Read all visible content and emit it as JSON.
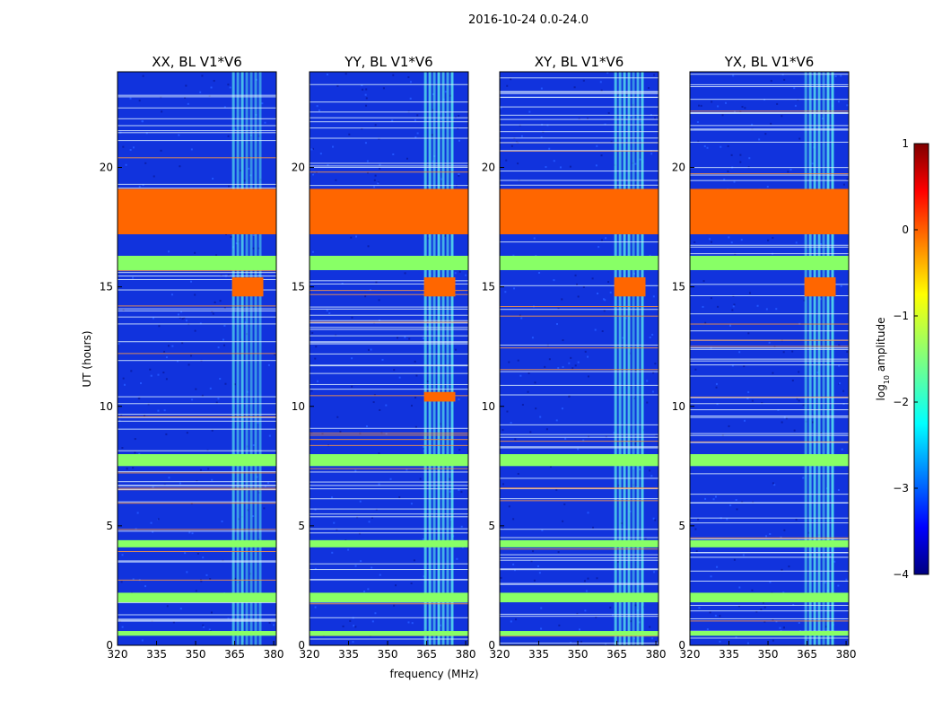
{
  "chart_data": {
    "type": "heatmap",
    "suptitle": "2016-10-24 0.0-24.0",
    "xlabel": "frequency (MHz)",
    "ylabel": "UT (hours)",
    "xlim": [
      320,
      381
    ],
    "ylim": [
      0,
      24
    ],
    "xticks": [
      "320",
      "335",
      "350",
      "365",
      "380"
    ],
    "xtick_values": [
      320,
      335,
      350,
      365,
      380
    ],
    "yticks": [
      "0",
      "5",
      "10",
      "15",
      "20"
    ],
    "ytick_values": [
      0,
      5,
      10,
      15,
      20
    ],
    "colorbar": {
      "label_prefix": "log",
      "label_sub": "10",
      "label_suffix": " amplitude",
      "range": [
        -4,
        1
      ],
      "ticks": [
        "−4",
        "−3",
        "−2",
        "−1",
        "0",
        "1"
      ],
      "tick_values": [
        -4,
        -3,
        -2,
        -1,
        0,
        1
      ]
    },
    "panels": [
      {
        "title": "XX, BL V1*V6",
        "band": [
          364,
          376
        ],
        "saturated_rows_hours": [
          [
            17.2,
            19.1
          ],
          [
            14.6,
            15.4
          ]
        ],
        "flagged_rows_hours": [
          [
            15.7,
            16.3
          ],
          [
            7.5,
            8.0
          ],
          [
            4.1,
            4.4
          ],
          [
            1.8,
            2.2
          ],
          [
            0.4,
            0.6
          ]
        ]
      },
      {
        "title": "YY, BL V1*V6",
        "band": [
          364,
          376
        ],
        "saturated_rows_hours": [
          [
            17.2,
            19.1
          ],
          [
            14.6,
            15.4
          ],
          [
            10.2,
            10.6
          ]
        ],
        "flagged_rows_hours": [
          [
            15.7,
            16.3
          ],
          [
            7.5,
            8.0
          ],
          [
            4.1,
            4.4
          ],
          [
            1.8,
            2.2
          ],
          [
            0.4,
            0.6
          ]
        ]
      },
      {
        "title": "XY, BL V1*V6",
        "band": [
          364,
          376
        ],
        "saturated_rows_hours": [
          [
            17.2,
            19.1
          ],
          [
            14.6,
            15.4
          ]
        ],
        "flagged_rows_hours": [
          [
            15.7,
            16.3
          ],
          [
            7.5,
            8.0
          ],
          [
            4.1,
            4.4
          ],
          [
            1.8,
            2.2
          ],
          [
            0.4,
            0.6
          ]
        ]
      },
      {
        "title": "YX, BL V1*V6",
        "band": [
          364,
          376
        ],
        "saturated_rows_hours": [
          [
            17.2,
            19.1
          ],
          [
            14.6,
            15.4
          ]
        ],
        "flagged_rows_hours": [
          [
            15.7,
            16.3
          ],
          [
            7.5,
            8.0
          ],
          [
            4.1,
            4.4
          ],
          [
            1.8,
            2.2
          ],
          [
            0.4,
            0.6
          ]
        ]
      }
    ],
    "colors": {
      "background_blue": "#1133dd",
      "band_cyan": "#55ddee",
      "flag_green": "#88ff66",
      "saturated_orange": "#ff6600",
      "line_light": "#ddeeff",
      "line_orange": "#ff9944"
    }
  }
}
